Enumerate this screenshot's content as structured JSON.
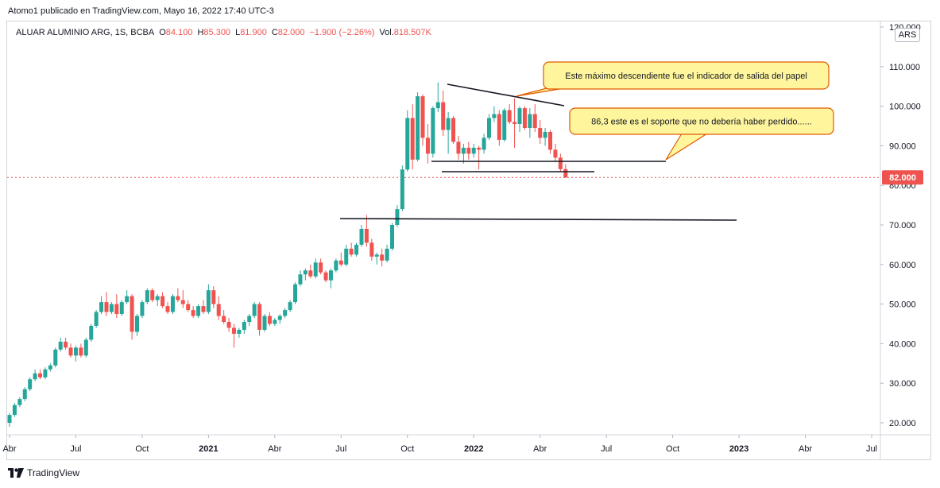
{
  "header": {
    "published": "Atomo1 publicado en TradingView.com, Mayo 16, 2022 17:40 UTC-3"
  },
  "legend": {
    "symbol": "ALUAR ALUMINIO ARG, 1S, BCBA",
    "open_label": "O",
    "open": "84.100",
    "high_label": "H",
    "high": "85.300",
    "low_label": "L",
    "low": "81.900",
    "close_label": "C",
    "close": "82.000",
    "change": "−1.900 (−2.26%)",
    "vol_label": "Vol.",
    "vol": "818.507K"
  },
  "currency": "ARS",
  "footer": {
    "brand": "TradingView"
  },
  "colors": {
    "up": "#26a69a",
    "down": "#ef5350",
    "price_line": "#ef5350",
    "callout_fill": "#fff59d",
    "callout_border": "#e05a00"
  },
  "chart_data": {
    "type": "candlestick",
    "y_axis": {
      "ticks": [
        20,
        30,
        40,
        50,
        60,
        70,
        80,
        90,
        100,
        110,
        120
      ],
      "tick_labels": [
        "20.000",
        "30.000",
        "40.000",
        "50.000",
        "60.000",
        "70.000",
        "80.000",
        "90.000",
        "100.000",
        "110.000",
        "120.000"
      ],
      "range": [
        16,
        122
      ]
    },
    "x_axis": {
      "ticks": [
        {
          "label": "Abr",
          "t": 0,
          "bold": false
        },
        {
          "label": "Jul",
          "t": 13,
          "bold": false
        },
        {
          "label": "Oct",
          "t": 26,
          "bold": false
        },
        {
          "label": "2021",
          "t": 39,
          "bold": true
        },
        {
          "label": "Abr",
          "t": 52,
          "bold": false
        },
        {
          "label": "Jul",
          "t": 65,
          "bold": false
        },
        {
          "label": "Oct",
          "t": 78,
          "bold": false
        },
        {
          "label": "2022",
          "t": 91,
          "bold": true
        },
        {
          "label": "Abr",
          "t": 104,
          "bold": false
        },
        {
          "label": "Jul",
          "t": 117,
          "bold": false
        },
        {
          "label": "Oct",
          "t": 130,
          "bold": false
        },
        {
          "label": "2023",
          "t": 143,
          "bold": true
        },
        {
          "label": "Abr",
          "t": 156,
          "bold": false
        },
        {
          "label": "Jul",
          "t": 169,
          "bold": false
        }
      ],
      "range": [
        0,
        171
      ]
    },
    "last_price": "82.000",
    "last_value": 82.0,
    "candles": [
      [
        20.0,
        22.5,
        19.0,
        22.0
      ],
      [
        22.0,
        25.0,
        21.5,
        24.5
      ],
      [
        24.5,
        26.5,
        24.0,
        26.0
      ],
      [
        26.0,
        29.0,
        25.5,
        28.5
      ],
      [
        28.5,
        31.5,
        28.0,
        31.0
      ],
      [
        31.0,
        33.5,
        30.5,
        32.5
      ],
      [
        32.5,
        33.5,
        31.0,
        31.5
      ],
      [
        31.5,
        34.0,
        31.0,
        33.5
      ],
      [
        33.5,
        35.0,
        33.0,
        34.5
      ],
      [
        34.5,
        39.0,
        34.0,
        38.5
      ],
      [
        38.5,
        41.5,
        38.0,
        40.5
      ],
      [
        40.5,
        41.5,
        38.5,
        39.0
      ],
      [
        39.0,
        40.0,
        36.5,
        37.0
      ],
      [
        37.0,
        39.5,
        35.5,
        39.0
      ],
      [
        39.0,
        40.0,
        36.5,
        37.0
      ],
      [
        37.0,
        41.5,
        36.5,
        41.0
      ],
      [
        41.0,
        45.0,
        40.5,
        44.5
      ],
      [
        44.5,
        48.5,
        44.0,
        48.0
      ],
      [
        48.0,
        52.0,
        47.5,
        50.5
      ],
      [
        50.5,
        53.0,
        47.0,
        48.0
      ],
      [
        48.0,
        50.5,
        47.5,
        50.0
      ],
      [
        50.0,
        52.5,
        46.5,
        47.5
      ],
      [
        47.5,
        51.0,
        47.0,
        50.5
      ],
      [
        50.5,
        53.5,
        50.0,
        52.0
      ],
      [
        52.0,
        52.5,
        41.0,
        43.0
      ],
      [
        43.0,
        47.5,
        42.0,
        47.0
      ],
      [
        47.0,
        51.0,
        46.5,
        50.5
      ],
      [
        50.5,
        54.0,
        50.0,
        53.5
      ],
      [
        53.5,
        54.0,
        50.5,
        51.0
      ],
      [
        51.0,
        52.5,
        49.5,
        52.0
      ],
      [
        52.0,
        53.0,
        49.0,
        49.5
      ],
      [
        49.5,
        50.5,
        47.5,
        48.0
      ],
      [
        48.0,
        52.5,
        47.5,
        52.0
      ],
      [
        52.0,
        54.0,
        50.5,
        51.0
      ],
      [
        51.0,
        53.5,
        49.0,
        50.0
      ],
      [
        50.0,
        51.0,
        48.0,
        48.5
      ],
      [
        48.5,
        49.5,
        46.5,
        47.0
      ],
      [
        47.0,
        50.0,
        46.5,
        49.5
      ],
      [
        49.5,
        51.0,
        47.5,
        48.0
      ],
      [
        48.0,
        55.0,
        47.5,
        53.5
      ],
      [
        53.5,
        54.5,
        49.0,
        50.0
      ],
      [
        50.0,
        52.0,
        46.0,
        47.0
      ],
      [
        47.0,
        48.5,
        45.0,
        45.5
      ],
      [
        45.5,
        46.5,
        43.0,
        44.0
      ],
      [
        44.0,
        45.0,
        39.0,
        42.5
      ],
      [
        42.5,
        44.0,
        41.5,
        43.5
      ],
      [
        43.5,
        46.0,
        42.5,
        45.5
      ],
      [
        45.5,
        47.5,
        44.5,
        47.0
      ],
      [
        47.0,
        50.5,
        46.5,
        50.0
      ],
      [
        50.0,
        50.5,
        42.0,
        43.5
      ],
      [
        43.5,
        47.5,
        43.0,
        47.0
      ],
      [
        47.0,
        48.0,
        44.5,
        45.0
      ],
      [
        45.0,
        46.5,
        44.5,
        46.0
      ],
      [
        46.0,
        47.5,
        45.0,
        47.0
      ],
      [
        47.0,
        49.0,
        46.5,
        48.5
      ],
      [
        48.5,
        51.0,
        48.0,
        50.5
      ],
      [
        50.5,
        55.5,
        50.0,
        55.0
      ],
      [
        55.0,
        58.5,
        54.5,
        57.5
      ],
      [
        57.5,
        59.0,
        56.0,
        58.5
      ],
      [
        58.5,
        60.0,
        56.5,
        57.0
      ],
      [
        57.0,
        61.5,
        56.5,
        60.5
      ],
      [
        60.5,
        61.5,
        57.5,
        58.0
      ],
      [
        58.0,
        58.5,
        55.5,
        56.0
      ],
      [
        56.0,
        59.0,
        54.0,
        58.5
      ],
      [
        58.5,
        61.5,
        58.0,
        61.0
      ],
      [
        61.0,
        63.0,
        59.5,
        60.0
      ],
      [
        60.0,
        65.0,
        59.5,
        64.0
      ],
      [
        64.0,
        65.5,
        62.0,
        62.5
      ],
      [
        62.5,
        65.5,
        62.0,
        65.0
      ],
      [
        65.0,
        70.0,
        64.5,
        69.0
      ],
      [
        69.0,
        72.5,
        64.5,
        65.5
      ],
      [
        65.5,
        66.5,
        61.0,
        62.0
      ],
      [
        62.0,
        63.0,
        60.0,
        62.5
      ],
      [
        62.5,
        64.0,
        59.5,
        61.0
      ],
      [
        61.0,
        65.0,
        60.5,
        64.0
      ],
      [
        64.0,
        70.5,
        63.5,
        70.0
      ],
      [
        70.0,
        75.0,
        69.5,
        74.0
      ],
      [
        74.0,
        85.0,
        73.5,
        84.0
      ],
      [
        84.0,
        99.0,
        83.5,
        97.0
      ],
      [
        97.0,
        100.5,
        84.0,
        86.5
      ],
      [
        86.5,
        103.5,
        86.0,
        102.5
      ],
      [
        102.5,
        103.0,
        90.0,
        92.0
      ],
      [
        92.0,
        95.5,
        85.5,
        88.0
      ],
      [
        88.0,
        100.0,
        87.0,
        99.5
      ],
      [
        99.5,
        106.0,
        98.5,
        101.0
      ],
      [
        101.0,
        104.0,
        92.5,
        94.0
      ],
      [
        94.0,
        98.5,
        88.0,
        97.0
      ],
      [
        97.0,
        97.5,
        90.5,
        91.0
      ],
      [
        91.0,
        92.5,
        86.5,
        88.0
      ],
      [
        88.0,
        90.5,
        85.5,
        89.5
      ],
      [
        89.5,
        91.0,
        86.5,
        88.0
      ],
      [
        88.0,
        90.5,
        87.0,
        89.5
      ],
      [
        89.5,
        90.0,
        84.0,
        89.0
      ],
      [
        89.0,
        93.0,
        88.0,
        92.0
      ],
      [
        92.0,
        98.0,
        91.5,
        97.0
      ],
      [
        97.0,
        100.0,
        96.0,
        98.0
      ],
      [
        98.0,
        99.0,
        90.0,
        91.5
      ],
      [
        91.5,
        99.5,
        91.0,
        99.0
      ],
      [
        99.0,
        100.5,
        95.5,
        96.0
      ],
      [
        96.0,
        102.0,
        89.5,
        95.5
      ],
      [
        95.5,
        100.0,
        93.5,
        99.5
      ],
      [
        99.5,
        100.0,
        94.0,
        94.5
      ],
      [
        94.5,
        99.5,
        92.0,
        98.0
      ],
      [
        98.0,
        100.5,
        93.5,
        94.5
      ],
      [
        94.5,
        96.5,
        90.5,
        92.0
      ],
      [
        92.0,
        94.5,
        90.0,
        93.5
      ],
      [
        93.5,
        94.0,
        88.0,
        89.0
      ],
      [
        89.0,
        90.5,
        86.0,
        87.0
      ],
      [
        87.0,
        88.0,
        83.5,
        84.1
      ],
      [
        84.1,
        85.3,
        81.9,
        82.0
      ]
    ],
    "annotations": {
      "callout_1": "Este máximo descendiente fue el indicador de salida del papel",
      "callout_2": "86,3 este es el soporte que no debería haber perdido......"
    }
  }
}
